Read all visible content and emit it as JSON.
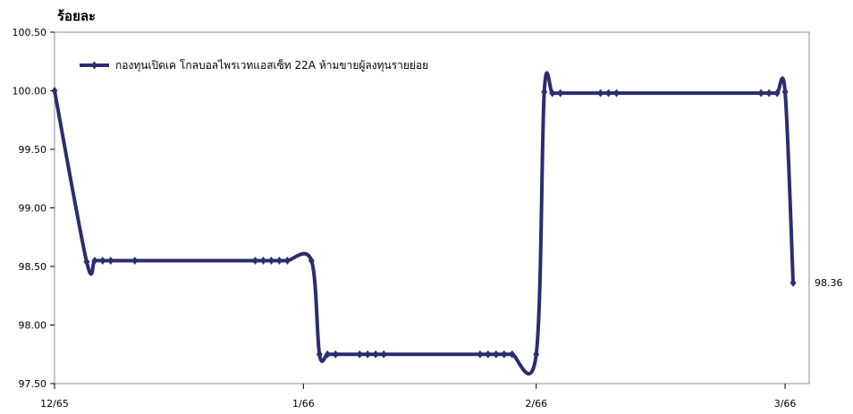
{
  "chart_data": {
    "type": "line",
    "ylabel": "ร้อยละ",
    "ylim": [
      97.5,
      100.5
    ],
    "y_ticks": [
      "100.50",
      "100.00",
      "99.50",
      "99.00",
      "98.50",
      "98.00",
      "97.50"
    ],
    "x_ticks": [
      "12/65",
      "1/66",
      "2/66",
      "3/66"
    ],
    "x_tick_positions": [
      0,
      31,
      60,
      91
    ],
    "legend_position": "top-left",
    "grid": false,
    "last_value_label": "98.36",
    "series": [
      {
        "name": "กองทุนเปิดเค โกลบอลไพรเวทแอสเซ็ท 22A ห้ามขายผู้ลงทุนรายย่อย",
        "color": "#2b2d6e",
        "x": [
          0,
          4,
          5,
          6,
          7,
          10,
          25,
          26,
          27,
          28,
          29,
          32,
          33,
          34,
          35,
          38,
          39,
          40,
          41,
          53,
          54,
          55,
          56,
          57,
          60,
          61,
          62,
          63,
          68,
          69,
          70,
          88,
          89,
          90,
          91,
          92
        ],
        "values": [
          100.0,
          98.54,
          98.55,
          98.55,
          98.55,
          98.55,
          98.55,
          98.55,
          98.55,
          98.55,
          98.55,
          98.55,
          97.75,
          97.75,
          97.75,
          97.75,
          97.75,
          97.75,
          97.75,
          97.75,
          97.75,
          97.75,
          97.75,
          97.75,
          97.75,
          99.99,
          99.98,
          99.98,
          99.98,
          99.98,
          99.98,
          99.98,
          99.98,
          99.98,
          99.99,
          98.36
        ]
      }
    ]
  }
}
